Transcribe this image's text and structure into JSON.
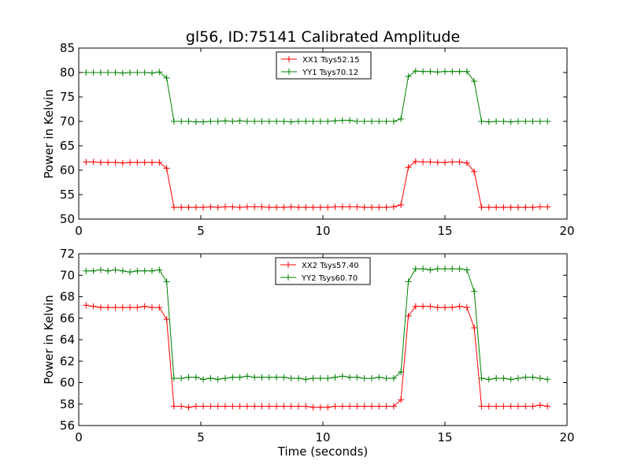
{
  "chart_data": [
    {
      "type": "line",
      "title": "gl56, ID:75141 Calibrated Amplitude",
      "xlabel": "",
      "ylabel": "Power in Kelvin",
      "xlim": [
        0,
        20
      ],
      "ylim": [
        50,
        85
      ],
      "xticks": [
        0,
        5,
        10,
        15,
        20
      ],
      "yticks": [
        50,
        55,
        60,
        65,
        70,
        75,
        80,
        85
      ],
      "grid": false,
      "legend_position": "top-center",
      "x": [
        0.3,
        0.6,
        0.9,
        1.2,
        1.5,
        1.8,
        2.1,
        2.4,
        2.7,
        3.0,
        3.3,
        3.6,
        3.9,
        4.2,
        4.5,
        4.8,
        5.1,
        5.4,
        5.7,
        6.0,
        6.3,
        6.6,
        6.9,
        7.2,
        7.5,
        7.8,
        8.1,
        8.4,
        8.7,
        9.0,
        9.3,
        9.6,
        9.9,
        10.2,
        10.5,
        10.8,
        11.1,
        11.4,
        11.7,
        12.0,
        12.3,
        12.6,
        12.9,
        13.2,
        13.5,
        13.8,
        14.1,
        14.4,
        14.7,
        15.0,
        15.3,
        15.6,
        15.9,
        16.2,
        16.5,
        16.8,
        17.1,
        17.4,
        17.7,
        18.0,
        18.3,
        18.6,
        18.9,
        19.2
      ],
      "series": [
        {
          "name": "XX1 Tsys52.15",
          "color": "#ff0000",
          "values": [
            61.7,
            61.7,
            61.6,
            61.6,
            61.6,
            61.5,
            61.6,
            61.6,
            61.6,
            61.6,
            61.6,
            60.4,
            52.4,
            52.4,
            52.4,
            52.4,
            52.4,
            52.5,
            52.4,
            52.5,
            52.5,
            52.4,
            52.5,
            52.5,
            52.5,
            52.4,
            52.4,
            52.4,
            52.5,
            52.4,
            52.4,
            52.4,
            52.4,
            52.4,
            52.5,
            52.5,
            52.5,
            52.5,
            52.4,
            52.4,
            52.4,
            52.4,
            52.5,
            52.9,
            60.6,
            61.8,
            61.7,
            61.7,
            61.6,
            61.6,
            61.7,
            61.7,
            61.5,
            59.7,
            52.4,
            52.4,
            52.4,
            52.4,
            52.4,
            52.4,
            52.4,
            52.4,
            52.5,
            52.5
          ]
        },
        {
          "name": "YY1 Tsys70.12",
          "color": "#008000",
          "values": [
            80.0,
            80.0,
            80.0,
            80.0,
            80.0,
            79.9,
            80.0,
            80.0,
            80.0,
            79.9,
            80.1,
            78.9,
            70.0,
            70.0,
            70.0,
            69.9,
            69.9,
            70.0,
            70.0,
            70.1,
            70.0,
            70.1,
            70.0,
            70.0,
            70.0,
            70.0,
            70.0,
            70.0,
            69.9,
            70.0,
            70.0,
            70.0,
            70.0,
            70.0,
            70.1,
            70.2,
            70.2,
            70.0,
            70.0,
            70.0,
            70.0,
            70.0,
            70.0,
            70.5,
            79.2,
            80.3,
            80.2,
            80.2,
            80.1,
            80.2,
            80.2,
            80.2,
            80.2,
            78.2,
            70.0,
            69.9,
            70.0,
            70.0,
            69.9,
            70.0,
            70.0,
            70.0,
            70.0,
            70.0
          ]
        }
      ]
    },
    {
      "type": "line",
      "title": "",
      "xlabel": "Time (seconds)",
      "ylabel": "Power in Kelvin",
      "xlim": [
        0,
        20
      ],
      "ylim": [
        56,
        72
      ],
      "xticks": [
        0,
        5,
        10,
        15,
        20
      ],
      "yticks": [
        56,
        58,
        60,
        62,
        64,
        66,
        68,
        70,
        72
      ],
      "grid": false,
      "legend_position": "top-center",
      "x": [
        0.3,
        0.6,
        0.9,
        1.2,
        1.5,
        1.8,
        2.1,
        2.4,
        2.7,
        3.0,
        3.3,
        3.6,
        3.9,
        4.2,
        4.5,
        4.8,
        5.1,
        5.4,
        5.7,
        6.0,
        6.3,
        6.6,
        6.9,
        7.2,
        7.5,
        7.8,
        8.1,
        8.4,
        8.7,
        9.0,
        9.3,
        9.6,
        9.9,
        10.2,
        10.5,
        10.8,
        11.1,
        11.4,
        11.7,
        12.0,
        12.3,
        12.6,
        12.9,
        13.2,
        13.5,
        13.8,
        14.1,
        14.4,
        14.7,
        15.0,
        15.3,
        15.6,
        15.9,
        16.2,
        16.5,
        16.8,
        17.1,
        17.4,
        17.7,
        18.0,
        18.3,
        18.6,
        18.9,
        19.2
      ],
      "series": [
        {
          "name": "XX2 Tsys57.40",
          "color": "#ff0000",
          "values": [
            67.2,
            67.1,
            67.0,
            67.0,
            67.0,
            67.0,
            67.0,
            67.0,
            67.1,
            67.0,
            67.0,
            65.9,
            57.8,
            57.8,
            57.7,
            57.8,
            57.8,
            57.8,
            57.8,
            57.8,
            57.8,
            57.8,
            57.8,
            57.8,
            57.8,
            57.8,
            57.8,
            57.8,
            57.8,
            57.8,
            57.8,
            57.7,
            57.7,
            57.7,
            57.8,
            57.8,
            57.8,
            57.8,
            57.8,
            57.8,
            57.8,
            57.8,
            57.8,
            58.4,
            66.2,
            67.1,
            67.1,
            67.1,
            67.0,
            67.0,
            67.0,
            67.1,
            67.0,
            65.1,
            57.8,
            57.8,
            57.8,
            57.8,
            57.8,
            57.8,
            57.8,
            57.8,
            57.9,
            57.8
          ]
        },
        {
          "name": "YY2 Tsys60.70",
          "color": "#008000",
          "values": [
            70.4,
            70.4,
            70.5,
            70.4,
            70.5,
            70.4,
            70.3,
            70.4,
            70.4,
            70.4,
            70.5,
            69.4,
            60.4,
            60.4,
            60.5,
            60.5,
            60.3,
            60.4,
            60.3,
            60.4,
            60.5,
            60.5,
            60.6,
            60.5,
            60.5,
            60.5,
            60.5,
            60.5,
            60.4,
            60.4,
            60.3,
            60.4,
            60.4,
            60.4,
            60.5,
            60.6,
            60.5,
            60.5,
            60.4,
            60.4,
            60.5,
            60.4,
            60.4,
            61.0,
            69.4,
            70.6,
            70.6,
            70.5,
            70.6,
            70.6,
            70.6,
            70.6,
            70.5,
            68.5,
            60.4,
            60.3,
            60.4,
            60.4,
            60.3,
            60.4,
            60.5,
            60.5,
            60.4,
            60.3
          ]
        }
      ]
    }
  ]
}
